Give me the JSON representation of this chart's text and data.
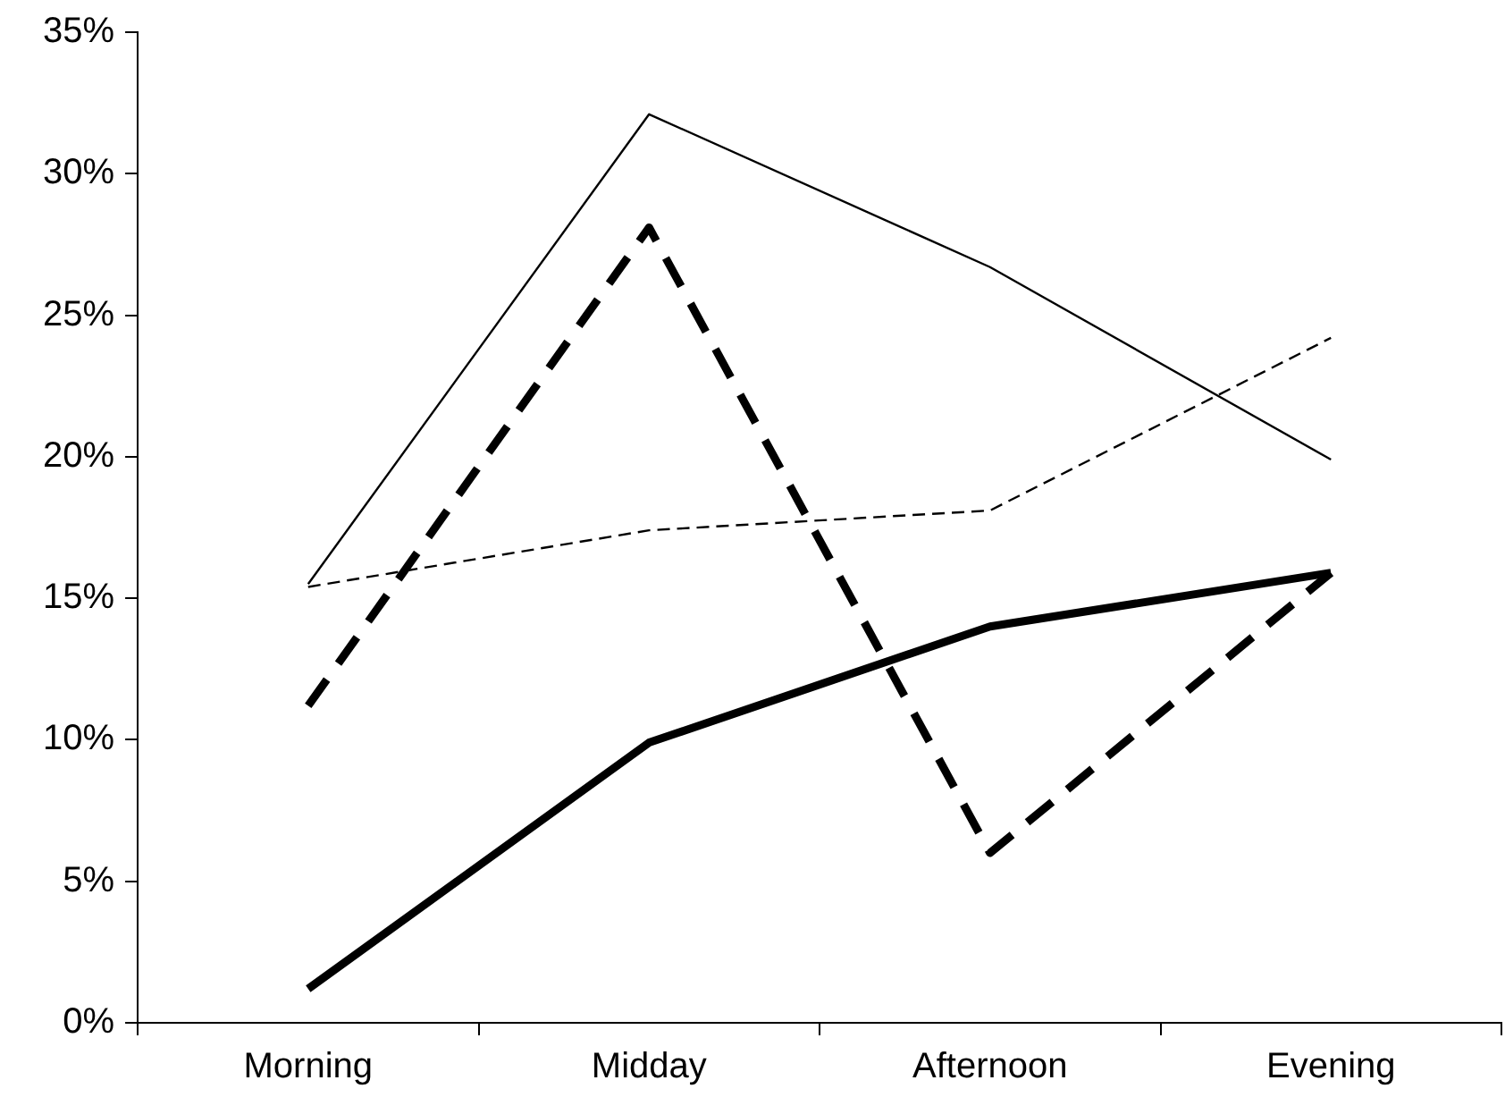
{
  "chart_data": {
    "type": "line",
    "categories": [
      "Morning",
      "Midday",
      "Afternoon",
      "Evening"
    ],
    "series": [
      {
        "color": "#000000",
        "line_style": "solid",
        "values": [
          15.5,
          32.1,
          26.7,
          19.9
        ]
      },
      {
        "color": "#000000",
        "line_style": "dashed",
        "values": [
          11.2,
          28.1,
          6.0,
          15.9
        ]
      },
      {
        "color": "#000000",
        "line_style": "dashed",
        "values": [
          15.4,
          17.4,
          18.1,
          24.2
        ]
      },
      {
        "color": "#000000",
        "line_style": "solid",
        "values": [
          1.2,
          9.9,
          14.0,
          15.9
        ]
      }
    ],
    "ylim": [
      0,
      35
    ],
    "yticks": [
      {
        "value": 0,
        "label": "0%"
      },
      {
        "value": 5,
        "label": "5%"
      },
      {
        "value": 10,
        "label": "10%"
      },
      {
        "value": 15,
        "label": "15%"
      },
      {
        "value": 20,
        "label": "20%"
      },
      {
        "value": 25,
        "label": "25%"
      },
      {
        "value": 30,
        "label": "30%"
      },
      {
        "value": 35,
        "label": "35%"
      }
    ],
    "grid": false,
    "legend": false,
    "marker": "none"
  }
}
